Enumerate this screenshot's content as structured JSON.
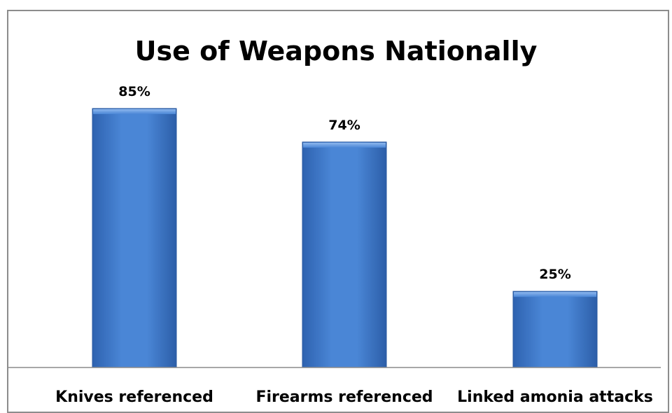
{
  "chart_data": {
    "type": "bar",
    "title": "Use of Weapons Nationally",
    "categories": [
      "Knives referenced",
      "Firearms referenced",
      "Linked amonia attacks"
    ],
    "values": [
      85,
      74,
      25
    ],
    "data_labels": [
      "85%",
      "74%",
      "25%"
    ],
    "xlabel": "",
    "ylabel": "",
    "ylim": [
      0,
      100
    ],
    "unit": "%",
    "grid": false,
    "legend": "none",
    "bar_color": "#3f78c8"
  }
}
